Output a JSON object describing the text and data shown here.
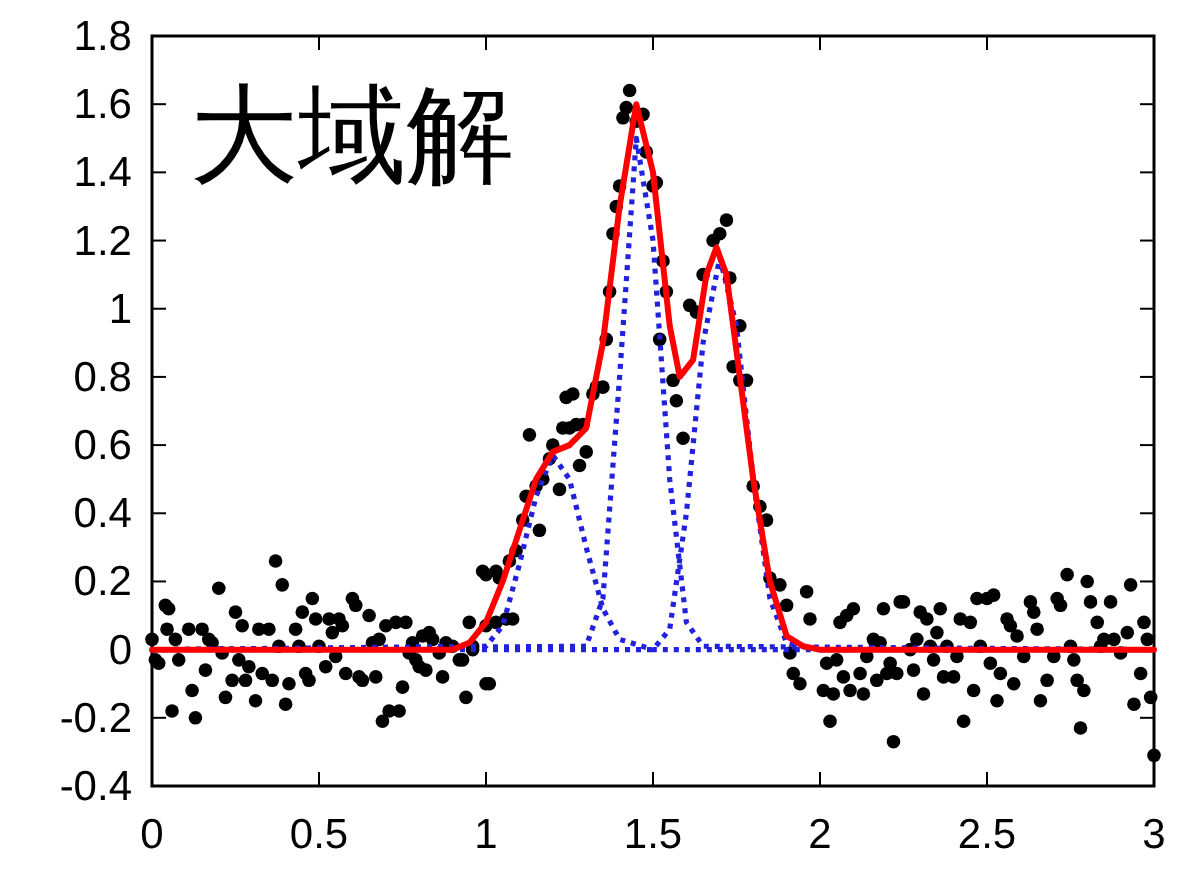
{
  "chart_data": {
    "type": "scatter",
    "title": "大域解",
    "xlim": [
      0,
      3
    ],
    "ylim": [
      -0.4,
      1.8
    ],
    "xticks": [
      0,
      0.5,
      1,
      1.5,
      2,
      2.5,
      3
    ],
    "yticks": [
      -0.4,
      -0.2,
      0,
      0.2,
      0.4,
      0.6,
      0.8,
      1,
      1.2,
      1.4,
      1.6,
      1.8
    ],
    "grid": false,
    "series": [
      {
        "marker": "circle",
        "color": "#000000",
        "x": [
          0.0,
          0.01,
          0.02,
          0.04,
          0.05,
          0.045,
          0.06,
          0.07,
          0.08,
          0.11,
          0.12,
          0.13,
          0.15,
          0.16,
          0.17,
          0.18,
          0.2,
          0.21,
          0.22,
          0.24,
          0.25,
          0.26,
          0.27,
          0.28,
          0.29,
          0.31,
          0.32,
          0.33,
          0.35,
          0.36,
          0.37,
          0.38,
          0.39,
          0.4,
          0.41,
          0.43,
          0.44,
          0.45,
          0.46,
          0.47,
          0.48,
          0.49,
          0.5,
          0.52,
          0.53,
          0.54,
          0.55,
          0.56,
          0.57,
          0.58,
          0.6,
          0.61,
          0.62,
          0.63,
          0.65,
          0.66,
          0.67,
          0.68,
          0.69,
          0.7,
          0.71,
          0.73,
          0.74,
          0.75,
          0.76,
          0.77,
          0.78,
          0.79,
          0.8,
          0.81,
          0.82,
          0.83,
          0.84,
          0.86,
          0.87,
          0.88,
          0.9,
          0.92,
          0.94,
          0.95,
          0.96,
          0.99,
          1.01,
          1.03,
          0.93,
          0.96,
          1.0,
          1.0,
          1.03,
          1.06,
          1.08,
          1.0,
          1.04,
          1.07,
          1.09,
          1.11,
          1.12,
          1.15,
          1.16,
          1.13,
          1.17,
          1.19,
          1.2,
          1.22,
          1.23,
          1.24,
          1.26,
          1.25,
          1.27,
          1.28,
          1.29,
          1.3,
          1.32,
          1.33,
          1.35,
          1.36,
          1.37,
          1.38,
          1.39,
          1.4,
          1.41,
          1.42,
          1.43,
          1.45,
          1.47,
          1.48,
          1.5,
          1.51,
          1.53,
          1.54,
          1.52,
          1.56,
          1.57,
          1.59,
          1.61,
          1.63,
          1.65,
          1.68,
          1.7,
          1.72,
          1.73,
          1.76,
          1.74,
          1.76,
          1.78,
          1.8,
          1.82,
          1.84,
          1.85,
          1.88,
          1.9,
          1.91,
          1.92,
          1.94,
          1.96,
          1.97,
          2.01,
          2.02,
          2.03,
          2.04,
          2.05,
          2.06,
          2.07,
          2.08,
          2.09,
          2.1,
          2.12,
          2.13,
          2.14,
          2.16,
          2.17,
          2.18,
          2.19,
          2.2,
          2.21,
          2.22,
          2.23,
          2.24,
          2.25,
          2.27,
          2.28,
          2.29,
          2.3,
          2.31,
          2.32,
          2.33,
          2.34,
          2.35,
          2.36,
          2.37,
          2.38,
          2.4,
          2.41,
          2.42,
          2.43,
          2.45,
          2.46,
          2.47,
          2.48,
          2.5,
          2.52,
          2.51,
          2.53,
          2.54,
          2.56,
          2.57,
          2.58,
          2.59,
          2.61,
          2.63,
          2.64,
          2.65,
          2.66,
          2.68,
          2.7,
          2.71,
          2.72,
          2.74,
          2.75,
          2.76,
          2.77,
          2.78,
          2.79,
          2.8,
          2.81,
          2.83,
          2.84,
          2.85,
          2.87,
          2.88,
          2.9,
          2.92,
          2.93,
          2.94,
          2.96,
          2.97,
          2.98,
          2.99,
          3.0
        ],
        "values": [
          0.03,
          -0.03,
          -0.04,
          0.13,
          0.12,
          0.06,
          -0.18,
          0.03,
          -0.03,
          0.06,
          -0.12,
          -0.2,
          0.06,
          -0.06,
          0.03,
          0.02,
          0.18,
          -0.01,
          -0.14,
          -0.09,
          0.11,
          -0.03,
          0.07,
          -0.09,
          -0.05,
          -0.15,
          0.06,
          -0.07,
          0.06,
          -0.09,
          0.26,
          0.01,
          0.19,
          -0.16,
          -0.1,
          0.06,
          0.01,
          0.11,
          -0.07,
          -0.09,
          0.15,
          0.09,
          0.01,
          -0.05,
          0.09,
          0.05,
          -0.02,
          0.09,
          0.07,
          -0.07,
          0.15,
          0.13,
          -0.08,
          -0.09,
          0.1,
          0.02,
          -0.08,
          0.03,
          -0.21,
          0.07,
          -0.18,
          0.08,
          -0.18,
          -0.11,
          0.08,
          -0.01,
          0.02,
          -0.03,
          -0.05,
          0.04,
          -0.06,
          0.05,
          0.03,
          -0.01,
          -0.08,
          0.02,
          0.01,
          -0.03,
          -0.14,
          0.08,
          0.0,
          0.23,
          -0.1,
          0.23,
          -0.03,
          0.01,
          -0.1,
          0.07,
          0.08,
          0.09,
          0.09,
          0.22,
          0.21,
          0.26,
          0.29,
          0.38,
          0.45,
          0.48,
          0.35,
          0.63,
          0.5,
          0.56,
          0.6,
          0.47,
          0.65,
          0.74,
          0.75,
          0.65,
          0.66,
          0.54,
          0.66,
          0.58,
          0.75,
          0.77,
          0.77,
          0.91,
          1.05,
          1.22,
          1.3,
          1.36,
          1.56,
          1.59,
          1.64,
          1.55,
          1.57,
          1.46,
          1.36,
          1.37,
          1.14,
          1.05,
          0.91,
          0.79,
          0.73,
          0.62,
          1.01,
          0.99,
          1.1,
          1.2,
          1.22,
          1.26,
          1.09,
          0.95,
          0.83,
          0.79,
          0.79,
          0.48,
          0.42,
          0.38,
          0.21,
          0.19,
          0.13,
          -0.01,
          -0.07,
          -0.1,
          0.17,
          0.09,
          -0.12,
          -0.04,
          -0.21,
          -0.13,
          -0.03,
          0.08,
          -0.08,
          0.1,
          -0.12,
          0.12,
          -0.07,
          -0.13,
          -0.02,
          0.03,
          -0.09,
          0.02,
          0.12,
          -0.07,
          -0.04,
          -0.27,
          -0.07,
          0.14,
          0.14,
          0.0,
          -0.06,
          0.03,
          0.11,
          -0.13,
          0.09,
          0.01,
          -0.03,
          0.05,
          0.12,
          -0.08,
          0.01,
          -0.08,
          -0.02,
          0.09,
          -0.21,
          0.08,
          -0.12,
          0.15,
          0.01,
          0.15,
          0.16,
          -0.04,
          -0.15,
          -0.07,
          0.09,
          0.07,
          -0.1,
          0.04,
          -0.02,
          0.14,
          0.11,
          0.06,
          -0.15,
          -0.09,
          -0.02,
          0.15,
          0.13,
          0.22,
          0.01,
          -0.03,
          -0.09,
          -0.23,
          -0.12,
          0.2,
          0.14,
          0.08,
          0.01,
          0.03,
          0.14,
          0.03,
          -0.01,
          0.05,
          0.19,
          -0.16,
          -0.07,
          0.08,
          0.03,
          -0.14,
          -0.31
        ]
      },
      {
        "type": "line",
        "marker": "none",
        "line_style": "dotted",
        "color": "#2222dd",
        "x": [
          0,
          1.0,
          1.05,
          1.1,
          1.15,
          1.2,
          1.25,
          1.3,
          1.35,
          1.4,
          1.5,
          3
        ],
        "values": [
          0,
          0.01,
          0.07,
          0.25,
          0.45,
          0.57,
          0.5,
          0.3,
          0.12,
          0.03,
          0,
          0
        ]
      },
      {
        "type": "line",
        "marker": "none",
        "line_style": "dotted",
        "color": "#2222dd",
        "x": [
          0,
          1.3,
          1.35,
          1.4,
          1.45,
          1.5,
          1.55,
          1.6,
          1.65,
          3
        ],
        "values": [
          0,
          0.01,
          0.15,
          0.8,
          1.5,
          1.2,
          0.5,
          0.08,
          0.01,
          0
        ]
      },
      {
        "type": "line",
        "marker": "none",
        "line_style": "dotted",
        "color": "#2222dd",
        "x": [
          0,
          1.5,
          1.55,
          1.6,
          1.65,
          1.7,
          1.75,
          1.8,
          1.85,
          1.9,
          2.0,
          3
        ],
        "values": [
          0,
          0,
          0.06,
          0.4,
          0.9,
          1.15,
          0.95,
          0.5,
          0.15,
          0.02,
          0,
          0
        ]
      },
      {
        "type": "line",
        "marker": "none",
        "line_style": "solid",
        "color": "#ff0000",
        "x": [
          0,
          0.9,
          0.95,
          1.0,
          1.05,
          1.1,
          1.15,
          1.2,
          1.25,
          1.3,
          1.35,
          1.4,
          1.45,
          1.5,
          1.55,
          1.58,
          1.62,
          1.66,
          1.69,
          1.72,
          1.76,
          1.8,
          1.85,
          1.9,
          1.95,
          2.0,
          3
        ],
        "values": [
          0,
          0,
          0.02,
          0.08,
          0.2,
          0.35,
          0.5,
          0.58,
          0.6,
          0.65,
          0.9,
          1.3,
          1.6,
          1.4,
          0.95,
          0.8,
          0.85,
          1.1,
          1.18,
          1.1,
          0.8,
          0.5,
          0.2,
          0.04,
          0.01,
          0,
          0
        ]
      }
    ]
  }
}
